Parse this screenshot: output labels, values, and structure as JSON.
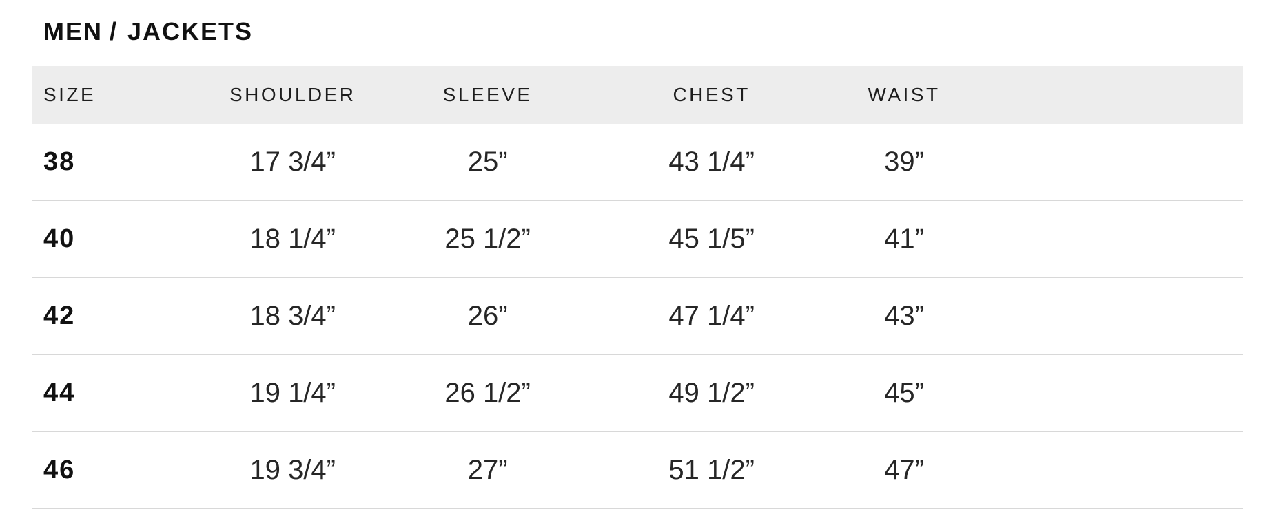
{
  "breadcrumb": {
    "category": "MEN",
    "separator": "/",
    "item": "JACKETS"
  },
  "size_chart": {
    "columns": [
      "SIZE",
      "SHOULDER",
      "SLEEVE",
      "CHEST",
      "WAIST"
    ],
    "rows": [
      {
        "size": "38",
        "shoulder": "17 3/4”",
        "sleeve": "25”",
        "chest": "43 1/4”",
        "waist": "39”"
      },
      {
        "size": "40",
        "shoulder": "18 1/4”",
        "sleeve": "25 1/2”",
        "chest": "45 1/5”",
        "waist": "41”"
      },
      {
        "size": "42",
        "shoulder": "18 3/4”",
        "sleeve": "26”",
        "chest": "47 1/4”",
        "waist": "43”"
      },
      {
        "size": "44",
        "shoulder": "19 1/4”",
        "sleeve": "26 1/2”",
        "chest": "49 1/2”",
        "waist": "45”"
      },
      {
        "size": "46",
        "shoulder": "19 3/4”",
        "sleeve": "27”",
        "chest": "51 1/2”",
        "waist": "47”"
      }
    ],
    "colors": {
      "header_background": "#ededed",
      "row_divider": "#d8d8d8",
      "heading_text": "#1d1d1d",
      "body_text": "#262626",
      "strong_text": "#111111"
    }
  }
}
